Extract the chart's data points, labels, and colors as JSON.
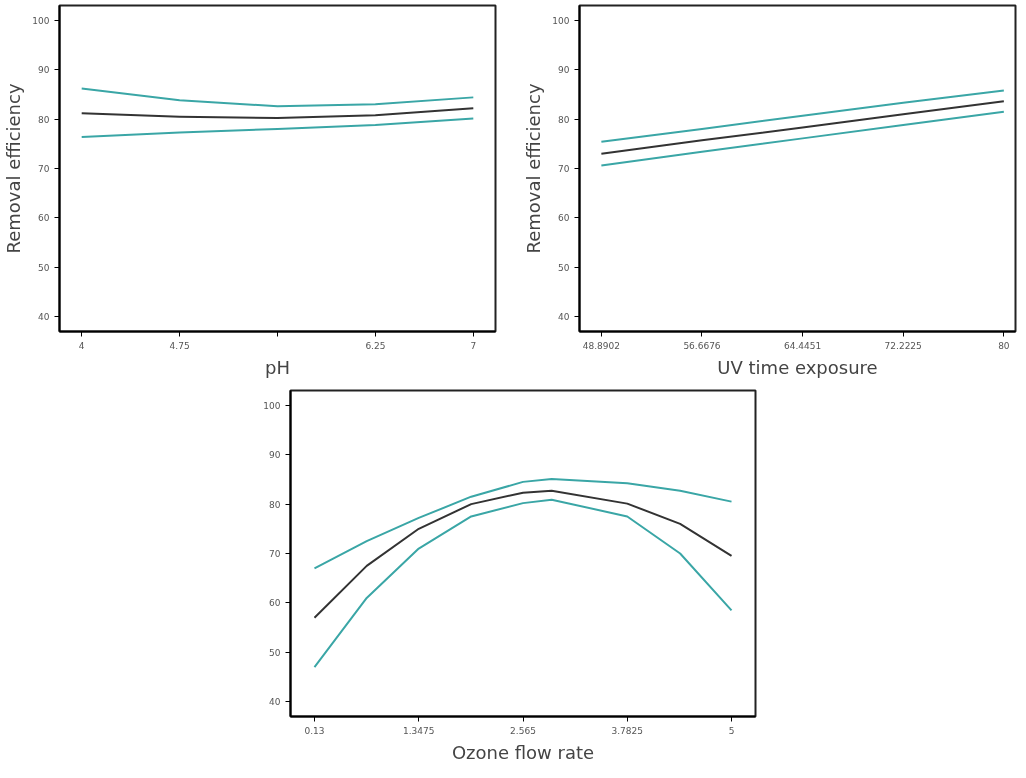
{
  "chart_data": [
    {
      "type": "line",
      "xlabel": "pH",
      "ylabel": "Removal efficiency",
      "x": [
        4,
        4.75,
        5.5,
        6.25,
        7
      ],
      "xlim": [
        3.83,
        7.17
      ],
      "ylim": [
        37,
        103
      ],
      "xticks": [
        4,
        4.75,
        {
          "value": 5.5,
          "label": null
        },
        6.25,
        7
      ],
      "yticks": [
        40,
        50,
        60,
        70,
        80,
        90,
        100
      ],
      "grid": false,
      "series": [
        {
          "color": "#3aa6a6",
          "values": [
            86.2,
            83.8,
            82.6,
            83.0,
            84.4
          ]
        },
        {
          "color": "#333333",
          "values": [
            81.2,
            80.5,
            80.2,
            80.8,
            82.2
          ]
        },
        {
          "color": "#3aa6a6",
          "values": [
            76.4,
            77.3,
            78.0,
            78.8,
            80.1
          ]
        }
      ]
    },
    {
      "type": "line",
      "xlabel": "UV time exposure",
      "ylabel": "Removal efficiency",
      "x": [
        48.8902,
        56.6676,
        64.4451,
        72.2225,
        80
      ],
      "xlim": [
        47.2,
        80.9
      ],
      "ylim": [
        37,
        103
      ],
      "xticks": [
        48.8902,
        56.6676,
        64.4451,
        72.2225,
        80
      ],
      "yticks": [
        40,
        50,
        60,
        70,
        80,
        90,
        100
      ],
      "grid": false,
      "series": [
        {
          "color": "#3aa6a6",
          "values": [
            75.4,
            78.0,
            80.7,
            83.3,
            85.8
          ]
        },
        {
          "color": "#333333",
          "values": [
            73.0,
            75.7,
            78.3,
            81.0,
            83.6
          ]
        },
        {
          "color": "#3aa6a6",
          "values": [
            70.6,
            73.4,
            76.1,
            78.8,
            81.5
          ]
        }
      ]
    },
    {
      "type": "line",
      "xlabel": "Ozone flow rate",
      "x": [
        0.13,
        0.74,
        1.3475,
        1.96,
        2.565,
        2.9,
        3.7825,
        4.4,
        5
      ],
      "xlim": [
        -0.15,
        5.28
      ],
      "ylim": [
        37,
        103
      ],
      "xticks": [
        0.13,
        1.3475,
        2.565,
        3.7825,
        5
      ],
      "yticks": [
        40,
        50,
        60,
        70,
        80,
        90,
        100
      ],
      "grid": false,
      "series": [
        {
          "color": "#3aa6a6",
          "values": [
            67,
            72.5,
            77.2,
            81.5,
            84.5,
            85.1,
            84.2,
            82.7,
            80.5
          ]
        },
        {
          "color": "#333333",
          "values": [
            57,
            67.5,
            75,
            80,
            82.3,
            82.7,
            80.1,
            76,
            69.5
          ]
        },
        {
          "color": "#3aa6a6",
          "values": [
            47,
            61,
            71,
            77.5,
            80.2,
            80.9,
            77.5,
            70,
            58.5
          ]
        }
      ]
    }
  ]
}
